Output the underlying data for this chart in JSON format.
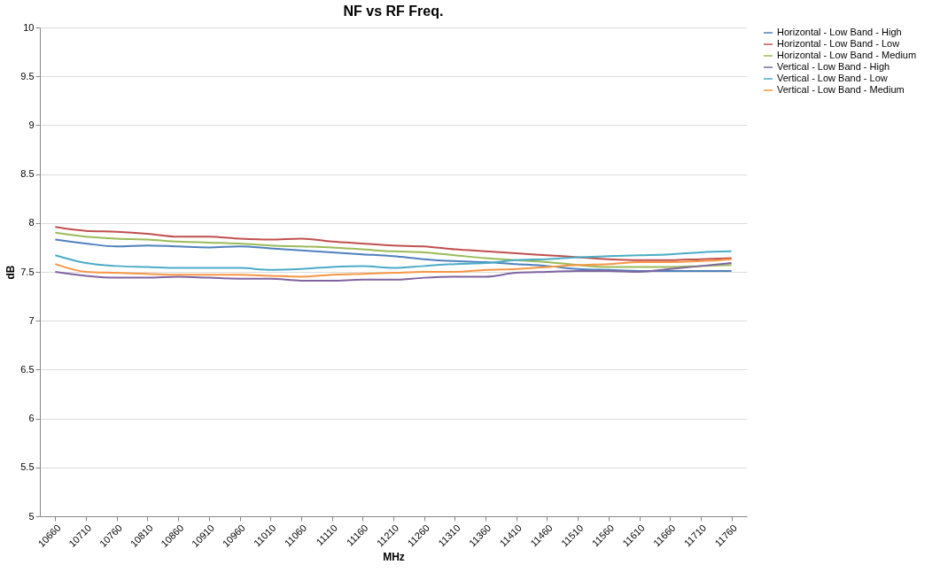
{
  "chart_data": {
    "type": "line",
    "title": "NF vs RF Freq.",
    "xlabel": "MHz",
    "ylabel": "dB",
    "categories": [
      "10660",
      "10710",
      "10760",
      "10810",
      "10860",
      "10910",
      "10960",
      "11010",
      "11060",
      "11110",
      "11160",
      "11210",
      "11260",
      "11310",
      "11360",
      "11410",
      "11460",
      "11510",
      "11560",
      "11610",
      "11660",
      "11710",
      "11760"
    ],
    "series": [
      {
        "name": "Horizontal - Low Band - High",
        "color": "#4f81bd",
        "values": [
          7.83,
          7.79,
          7.76,
          7.77,
          7.76,
          7.75,
          7.76,
          7.74,
          7.72,
          7.7,
          7.68,
          7.66,
          7.63,
          7.61,
          7.6,
          7.58,
          7.56,
          7.53,
          7.52,
          7.51,
          7.51,
          7.51,
          7.51
        ]
      },
      {
        "name": "Horizontal - Low Band - Low",
        "color": "#c0504d",
        "values": [
          7.96,
          7.92,
          7.91,
          7.89,
          7.86,
          7.86,
          7.84,
          7.83,
          7.84,
          7.81,
          7.79,
          7.77,
          7.76,
          7.73,
          7.71,
          7.69,
          7.67,
          7.65,
          7.63,
          7.62,
          7.62,
          7.63,
          7.64
        ]
      },
      {
        "name": "Horizontal - Low Band - Medium",
        "color": "#9bbb59",
        "values": [
          7.9,
          7.86,
          7.84,
          7.83,
          7.81,
          7.8,
          7.79,
          7.77,
          7.76,
          7.75,
          7.73,
          7.71,
          7.7,
          7.67,
          7.64,
          7.62,
          7.6,
          7.57,
          7.55,
          7.55,
          7.55,
          7.56,
          7.57
        ]
      },
      {
        "name": "Vertical - Low Band - High",
        "color": "#8064a2",
        "values": [
          7.5,
          7.46,
          7.44,
          7.44,
          7.45,
          7.44,
          7.43,
          7.43,
          7.41,
          7.41,
          7.42,
          7.42,
          7.44,
          7.45,
          7.45,
          7.49,
          7.5,
          7.51,
          7.51,
          7.5,
          7.53,
          7.56,
          7.59
        ]
      },
      {
        "name": "Vertical - Low Band - Low",
        "color": "#4bacc6",
        "values": [
          7.67,
          7.59,
          7.56,
          7.55,
          7.54,
          7.54,
          7.54,
          7.52,
          7.53,
          7.55,
          7.56,
          7.54,
          7.56,
          7.58,
          7.59,
          7.62,
          7.63,
          7.65,
          7.66,
          7.67,
          7.68,
          7.7,
          7.71
        ]
      },
      {
        "name": "Vertical - Low Band - Medium",
        "color": "#f79646",
        "values": [
          7.58,
          7.5,
          7.49,
          7.48,
          7.47,
          7.47,
          7.47,
          7.46,
          7.45,
          7.47,
          7.48,
          7.49,
          7.5,
          7.5,
          7.52,
          7.53,
          7.55,
          7.57,
          7.58,
          7.6,
          7.6,
          7.61,
          7.63
        ]
      }
    ],
    "ylim": [
      5,
      10
    ],
    "yticks": [
      5,
      5.5,
      6,
      6.5,
      7,
      7.5,
      8,
      8.5,
      9,
      9.5,
      10
    ],
    "grid": "y",
    "legend": "right",
    "marker": "none",
    "line_style": "solid"
  }
}
